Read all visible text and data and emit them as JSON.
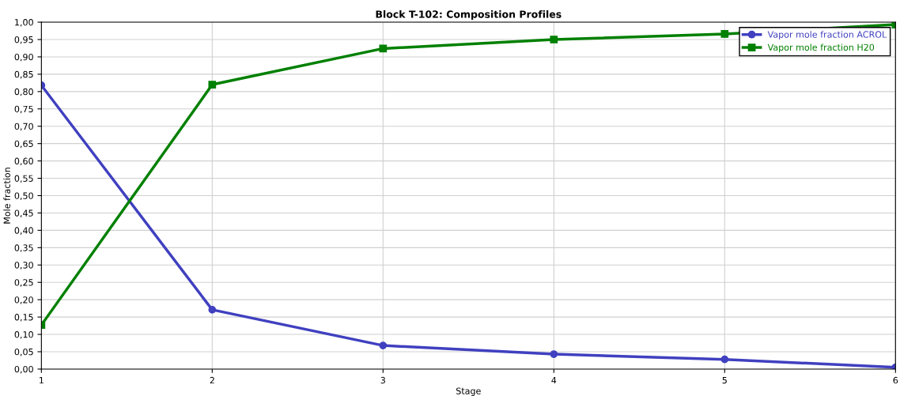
{
  "chart_data": {
    "type": "line",
    "title": "Block T-102: Composition Profiles",
    "xlabel": "Stage",
    "ylabel": "Mole fraction",
    "x": [
      1,
      2,
      3,
      4,
      5,
      6
    ],
    "series": [
      {
        "name": "Vapor mole fraction ACROL",
        "color": "#4040c0",
        "marker": "circle",
        "values": [
          0.818,
          0.171,
          0.068,
          0.043,
          0.028,
          0.005
        ]
      },
      {
        "name": "Vapor mole fraction H20",
        "color": "#008000",
        "marker": "square",
        "values": [
          0.127,
          0.82,
          0.924,
          0.95,
          0.966,
          0.993
        ]
      }
    ],
    "xlim": [
      1,
      6
    ],
    "xticks": [
      1,
      2,
      3,
      4,
      5,
      6
    ],
    "ylim": [
      0,
      1
    ],
    "yticks": [
      {
        "value": 0,
        "label": "0,00"
      },
      {
        "value": 0.05,
        "label": "0,05"
      },
      {
        "value": 0.1,
        "label": "0,10"
      },
      {
        "value": 0.15,
        "label": "0,15"
      },
      {
        "value": 0.2,
        "label": "0,20"
      },
      {
        "value": 0.25,
        "label": "0,25"
      },
      {
        "value": 0.3,
        "label": "0,30"
      },
      {
        "value": 0.35,
        "label": "0,35"
      },
      {
        "value": 0.4,
        "label": "0,40"
      },
      {
        "value": 0.45,
        "label": "0,45"
      },
      {
        "value": 0.5,
        "label": "0,50"
      },
      {
        "value": 0.55,
        "label": "0,55"
      },
      {
        "value": 0.6,
        "label": "0,60"
      },
      {
        "value": 0.65,
        "label": "0,65"
      },
      {
        "value": 0.7,
        "label": "0,70"
      },
      {
        "value": 0.75,
        "label": "0,75"
      },
      {
        "value": 0.8,
        "label": "0,80"
      },
      {
        "value": 0.85,
        "label": "0,85"
      },
      {
        "value": 0.9,
        "label": "0,90"
      },
      {
        "value": 0.95,
        "label": "0,95"
      },
      {
        "value": 1,
        "label": "1,00"
      }
    ],
    "grid": true,
    "legend": "top right",
    "line_style": "solid"
  }
}
